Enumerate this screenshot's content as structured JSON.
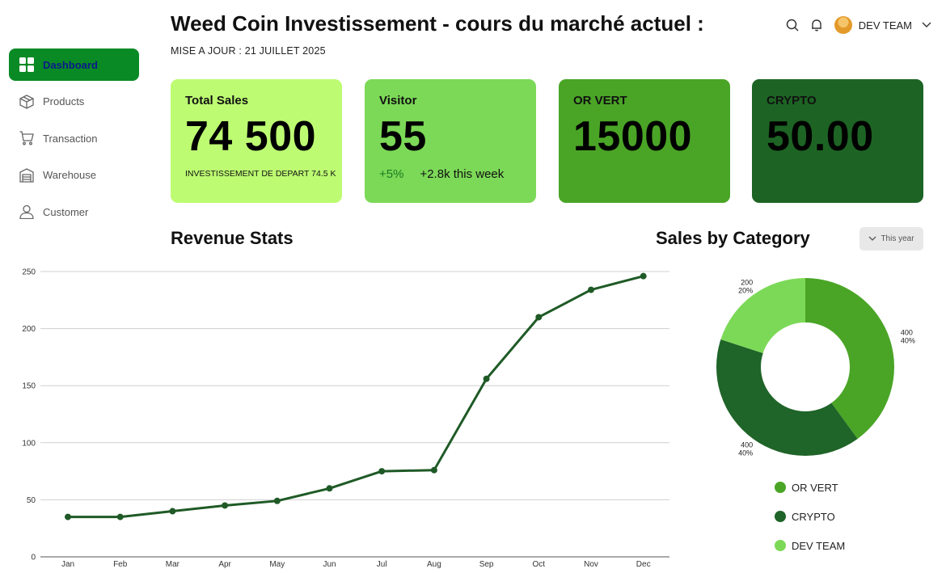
{
  "header": {
    "title": "Weed Coin Investissement - cours du marché actuel :",
    "subtitle": "MISE A JOUR : 21 JUILLET 2025",
    "team_name": "DEV TEAM"
  },
  "sidebar": {
    "items": [
      {
        "label": "Dashboard",
        "icon": "dashboard-icon",
        "active": true
      },
      {
        "label": "Products",
        "icon": "box-icon"
      },
      {
        "label": "Transaction",
        "icon": "cart-icon"
      },
      {
        "label": "Warehouse",
        "icon": "warehouse-icon"
      },
      {
        "label": "Customer",
        "icon": "user-icon"
      }
    ]
  },
  "cards": {
    "total_sales": {
      "label": "Total Sales",
      "value": "74 500",
      "note": "INVESTISSEMENT DE DEPART 74.5 K",
      "color": "#bdfc72"
    },
    "visitor": {
      "label": "Visitor",
      "value": "55",
      "change": "+5%",
      "note": "+2.8k this week",
      "color": "#7cd957"
    },
    "or_vert": {
      "label": "OR VERT",
      "value": "15000",
      "color": "#4aa526"
    },
    "crypto": {
      "label": "CRYPTO",
      "value": "50.00",
      "color": "#1d6424"
    }
  },
  "revenue": {
    "title": "Revenue Stats"
  },
  "category": {
    "title": "Sales by Category",
    "dropdown_label": "This year",
    "legend": [
      {
        "label": "OR VERT",
        "color": "#4aa526"
      },
      {
        "label": "CRYPTO",
        "color": "#1f6428"
      },
      {
        "label": "DEV TEAM",
        "color": "#7cd957"
      }
    ]
  },
  "chart_data": [
    {
      "type": "line",
      "title": "Revenue Stats",
      "categories": [
        "Jan",
        "Feb",
        "Mar",
        "Apr",
        "May",
        "Jun",
        "Jul",
        "Aug",
        "Sep",
        "Oct",
        "Nov",
        "Dec"
      ],
      "values": [
        35,
        35,
        40,
        45,
        49,
        60,
        75,
        76,
        156,
        210,
        234,
        246
      ],
      "yticks": [
        0,
        50,
        100,
        150,
        200,
        250
      ],
      "ylim": [
        0,
        250
      ],
      "grid": true,
      "color": "#1f5a26"
    },
    {
      "type": "pie",
      "title": "Sales by Category",
      "donut": true,
      "slices": [
        {
          "label": "OR VERT",
          "value": 400,
          "percent": "40%",
          "value_label": "400",
          "color": "#4aa526"
        },
        {
          "label": "CRYPTO",
          "value": 400,
          "percent": "40%",
          "value_label": "400",
          "color": "#1f6428"
        },
        {
          "label": "DEV TEAM",
          "value": 200,
          "percent": "20%",
          "value_label": "200",
          "color": "#7cd957"
        }
      ]
    }
  ]
}
